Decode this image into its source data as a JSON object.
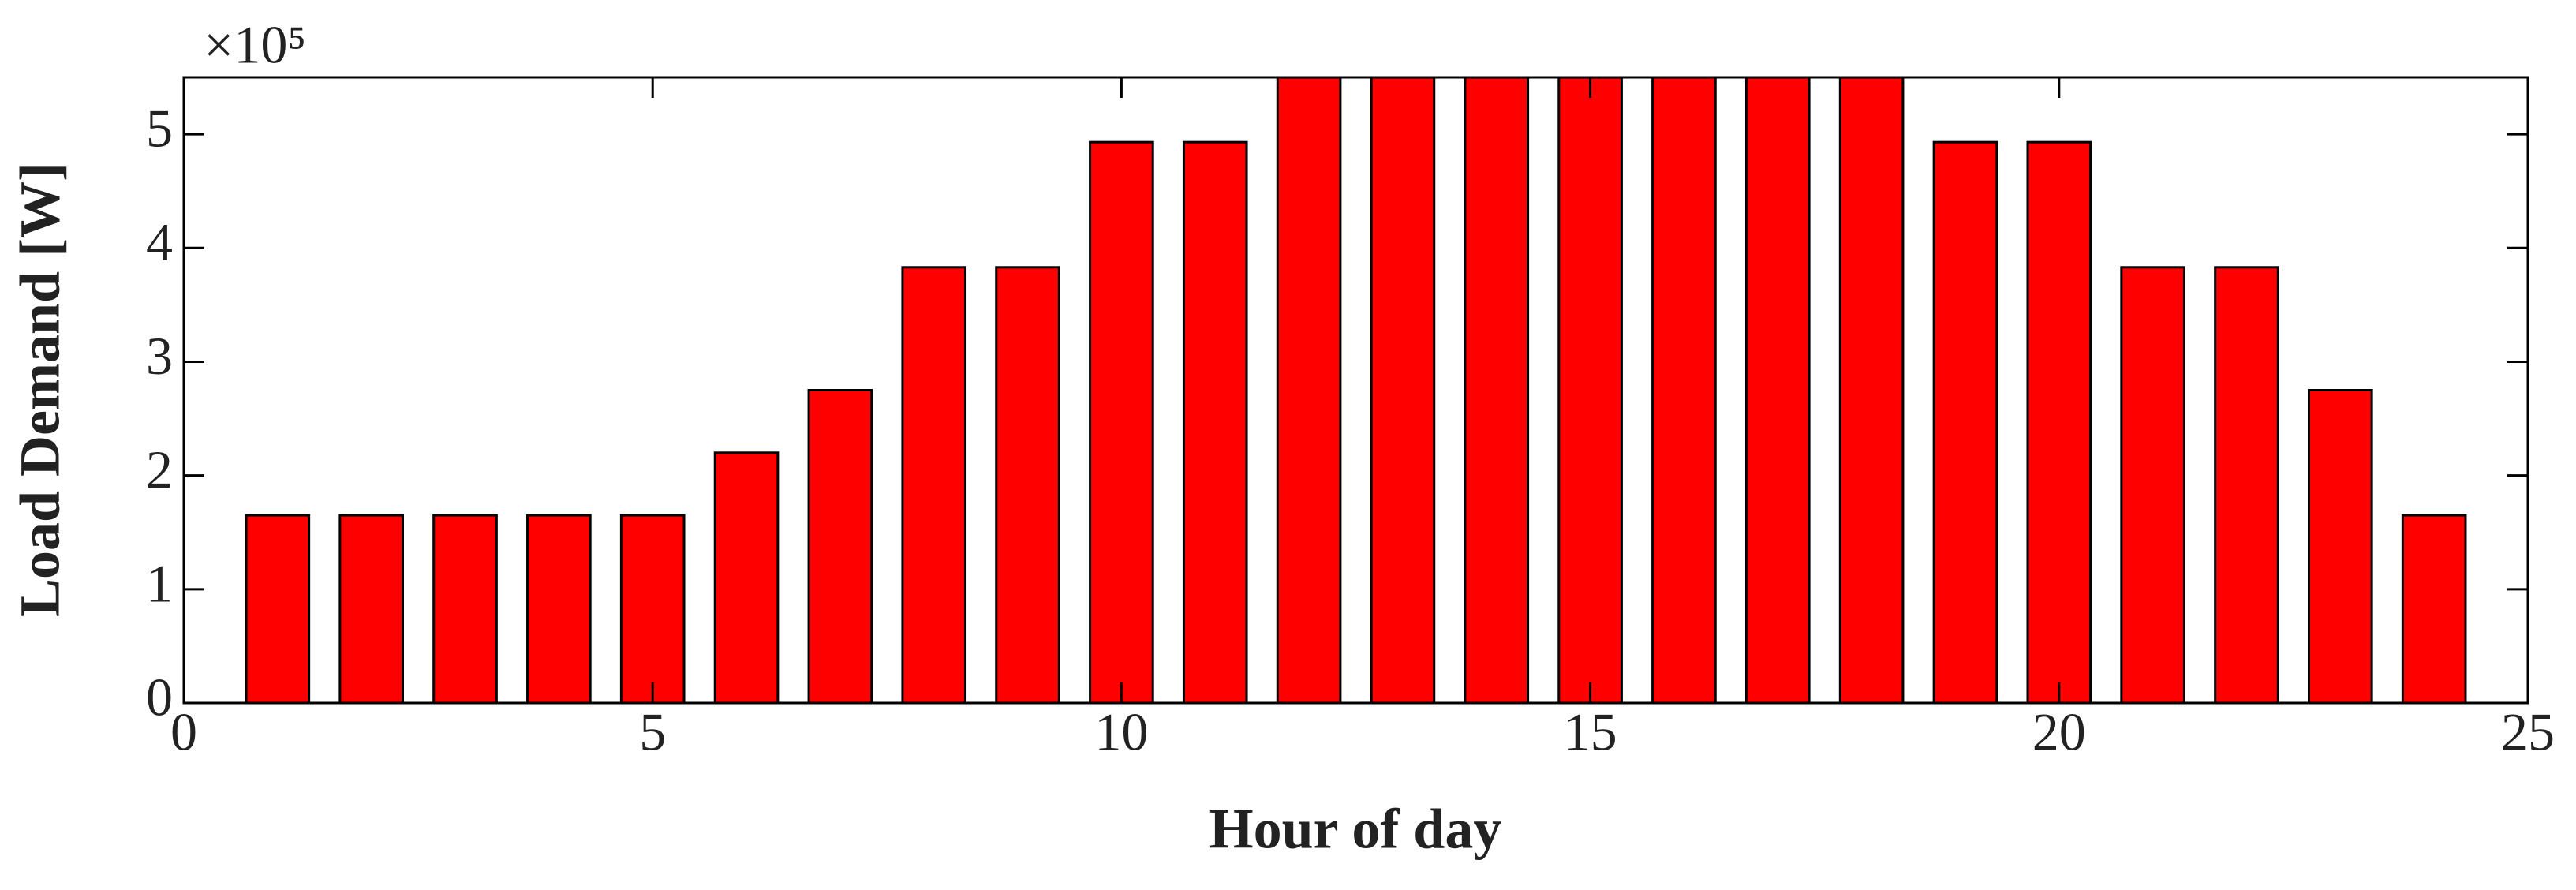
{
  "chart_data": {
    "type": "bar",
    "x_label": "Hour of day",
    "y_label": "Load Demand [W]",
    "y_multiplier": "×10⁵",
    "x": [
      1,
      2,
      3,
      4,
      5,
      6,
      7,
      8,
      9,
      10,
      11,
      12,
      13,
      14,
      15,
      16,
      17,
      18,
      19,
      20,
      21,
      22,
      23,
      24
    ],
    "values": [
      1.65,
      1.65,
      1.65,
      1.65,
      1.65,
      2.2,
      2.75,
      3.83,
      3.83,
      4.93,
      4.93,
      5.5,
      5.5,
      5.5,
      5.5,
      5.5,
      5.5,
      5.5,
      4.93,
      4.93,
      3.83,
      3.83,
      2.75,
      1.65
    ],
    "color": "#ff0000",
    "xlim": [
      0,
      25
    ],
    "xticks": [
      0,
      5,
      10,
      15,
      20,
      25
    ],
    "ylim": [
      0,
      5.5
    ],
    "yticks": [
      0,
      1,
      2,
      3,
      4,
      5
    ],
    "grid": false
  }
}
